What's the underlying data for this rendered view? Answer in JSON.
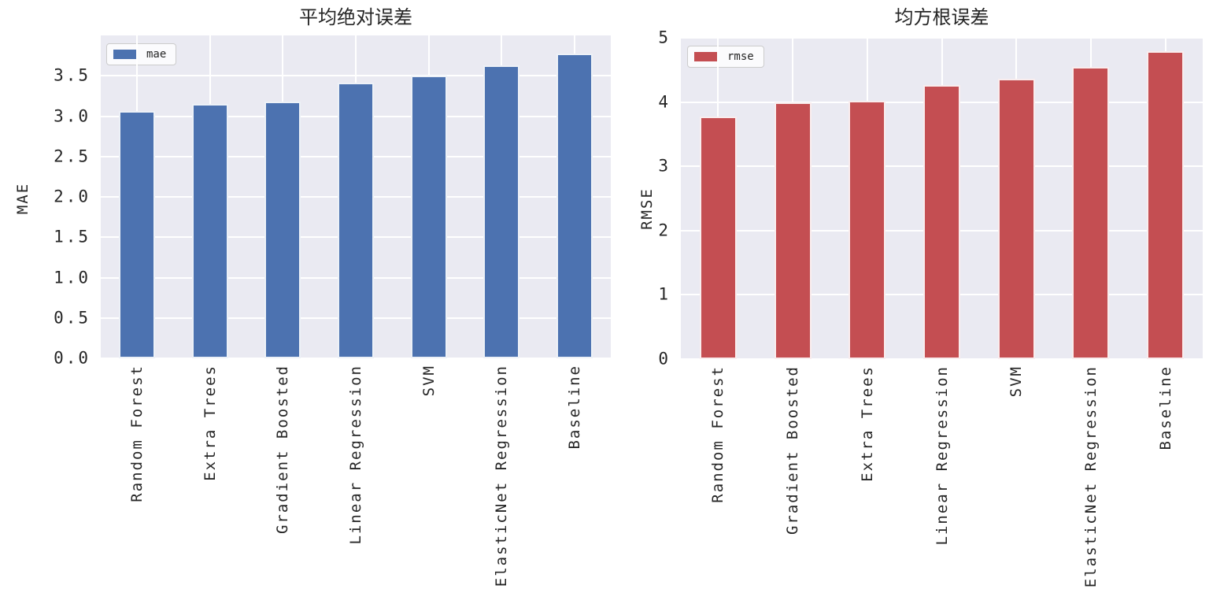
{
  "figure": {
    "background": "#ffffff",
    "plot_background": "#eaeaf2",
    "grid_color": "#ffffff",
    "text_color": "#262626"
  },
  "chart_data": [
    {
      "type": "bar",
      "title": "平均绝对误差",
      "ylabel": "MAE",
      "legend_label": "mae",
      "legend_position": "upper left",
      "bar_color": "#4c72b0",
      "grid": true,
      "categories": [
        "Random Forest",
        "Extra Trees",
        "Gradient Boosted",
        "Linear Regression",
        "SVM",
        "ElasticNet Regression",
        "Baseline"
      ],
      "values": [
        3.06,
        3.15,
        3.18,
        3.41,
        3.5,
        3.63,
        3.78
      ],
      "ylim": [
        0,
        4.0
      ],
      "yticks": [
        0.0,
        0.5,
        1.0,
        1.5,
        2.0,
        2.5,
        3.0,
        3.5
      ],
      "ytick_labels": [
        "0.0",
        "0.5",
        "1.0",
        "1.5",
        "2.0",
        "2.5",
        "3.0",
        "3.5"
      ]
    },
    {
      "type": "bar",
      "title": "均方根误差",
      "ylabel": "RMSE",
      "legend_label": "rmse",
      "legend_position": "upper left",
      "bar_color": "#c44e52",
      "grid": true,
      "categories": [
        "Random Forest",
        "Gradient Boosted",
        "Extra Trees",
        "Linear Regression",
        "SVM",
        "ElasticNet Regression",
        "Baseline"
      ],
      "values": [
        3.78,
        4.0,
        4.02,
        4.26,
        4.36,
        4.55,
        4.79
      ],
      "ylim": [
        0,
        5
      ],
      "yticks": [
        0,
        1,
        2,
        3,
        4,
        5
      ],
      "ytick_labels": [
        "0",
        "1",
        "2",
        "3",
        "4",
        "5"
      ]
    }
  ]
}
